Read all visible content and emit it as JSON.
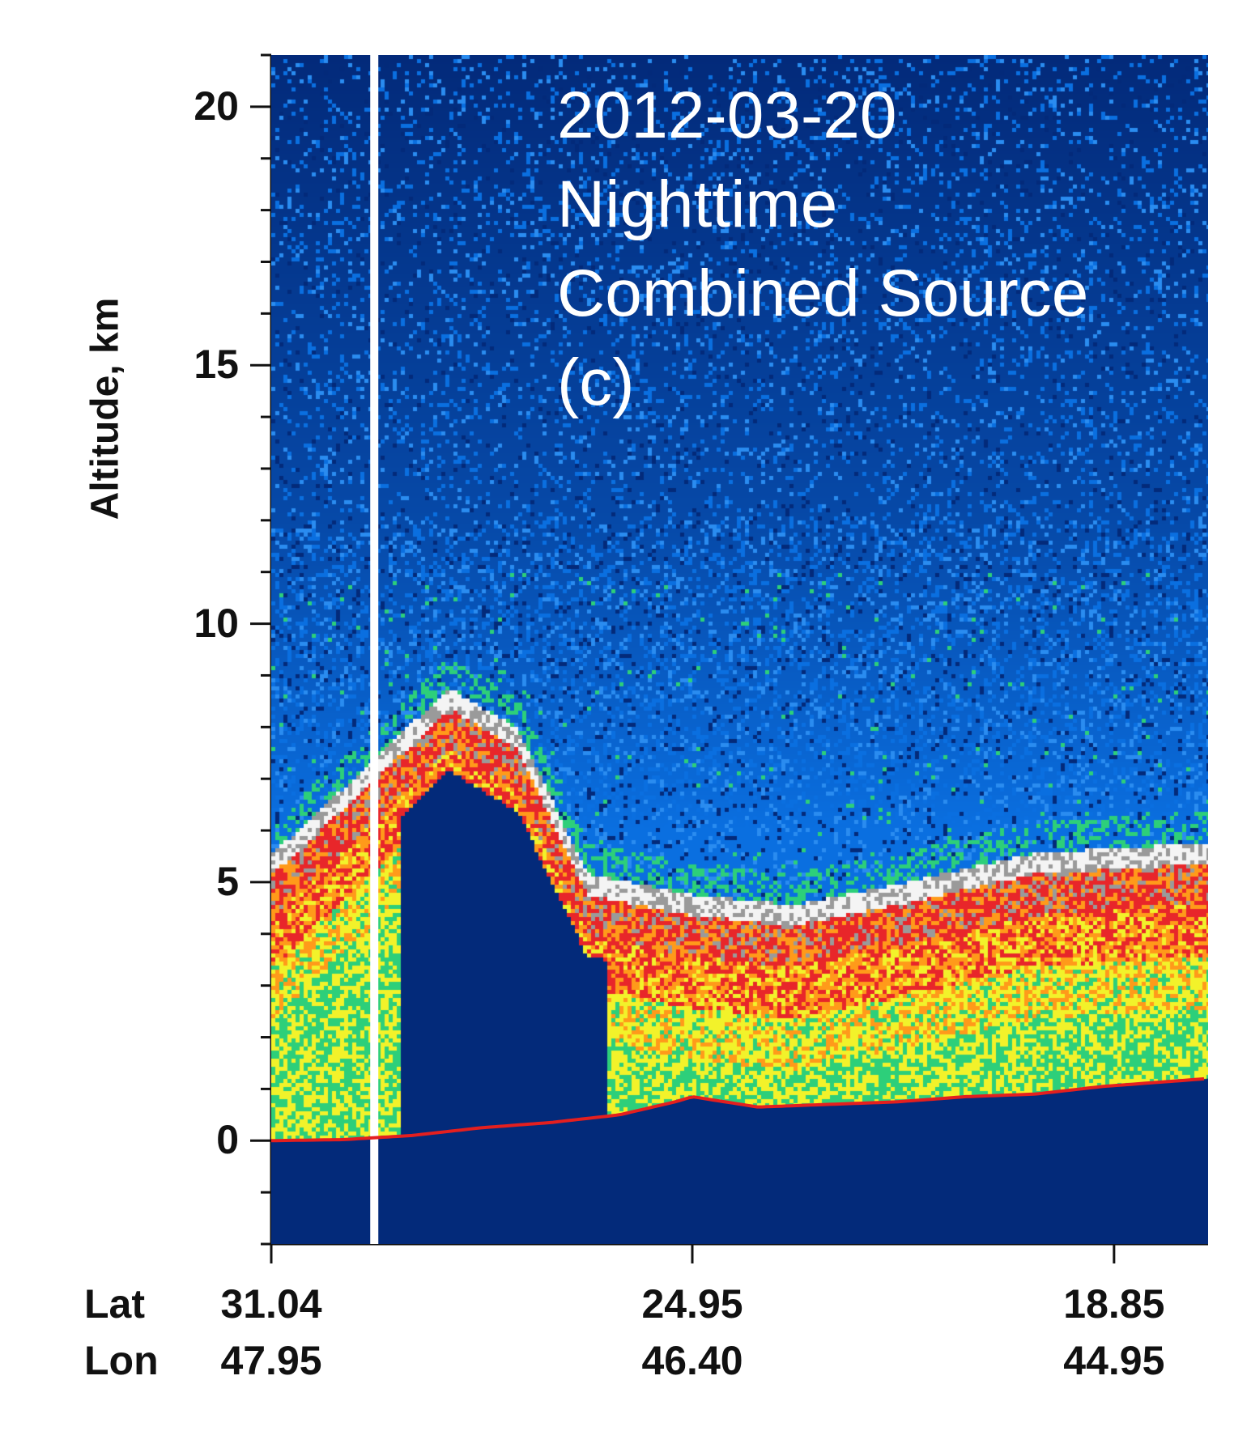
{
  "chart_data": {
    "type": "heatmap",
    "title": "",
    "annotation_lines": [
      "2012-03-20",
      "Nighttime",
      "Combined Source",
      "(c)"
    ],
    "ylabel": "Altitude, km",
    "ylim": [
      -2,
      21
    ],
    "y_ticks": [
      0,
      5,
      10,
      15,
      20
    ],
    "x_row_labels": [
      "Lat",
      "Lon"
    ],
    "x_ticks": [
      {
        "lat": "31.04",
        "lon": "47.95"
      },
      {
        "lat": "24.95",
        "lon": "46.40"
      },
      {
        "lat": "18.85",
        "lon": "44.95"
      }
    ],
    "colors": {
      "background_deep": "#032a7a",
      "background_mid": "#0a6fe0",
      "noise_speckle": "#2dcf7a",
      "aerosol_yellow": "#f2f22a",
      "aerosol_orange": "#ff9a1a",
      "aerosol_red": "#e8262a",
      "cloud_gray": "#9a9a9a",
      "cloud_white": "#f4f4f4",
      "surface_line": "#e41f1f"
    },
    "surface_elevation_km": [
      [
        31.04,
        0.0
      ],
      [
        30.0,
        0.02
      ],
      [
        29.0,
        0.1
      ],
      [
        28.0,
        0.25
      ],
      [
        27.0,
        0.35
      ],
      [
        26.0,
        0.5
      ],
      [
        25.2,
        0.75
      ],
      [
        24.95,
        0.85
      ],
      [
        24.0,
        0.65
      ],
      [
        23.0,
        0.7
      ],
      [
        22.0,
        0.75
      ],
      [
        21.0,
        0.85
      ],
      [
        20.0,
        0.9
      ],
      [
        19.0,
        1.05
      ],
      [
        17.5,
        1.2
      ]
    ],
    "aerosol_layer_top_km": [
      [
        31.04,
        5.6
      ],
      [
        29.5,
        7.5
      ],
      [
        28.5,
        8.8
      ],
      [
        27.5,
        8.0
      ],
      [
        26.5,
        5.2
      ],
      [
        25.0,
        4.8
      ],
      [
        23.5,
        4.6
      ],
      [
        22.0,
        5.0
      ],
      [
        20.0,
        5.6
      ],
      [
        17.5,
        5.8
      ]
    ],
    "clear_gap_lat": 29.55
  }
}
